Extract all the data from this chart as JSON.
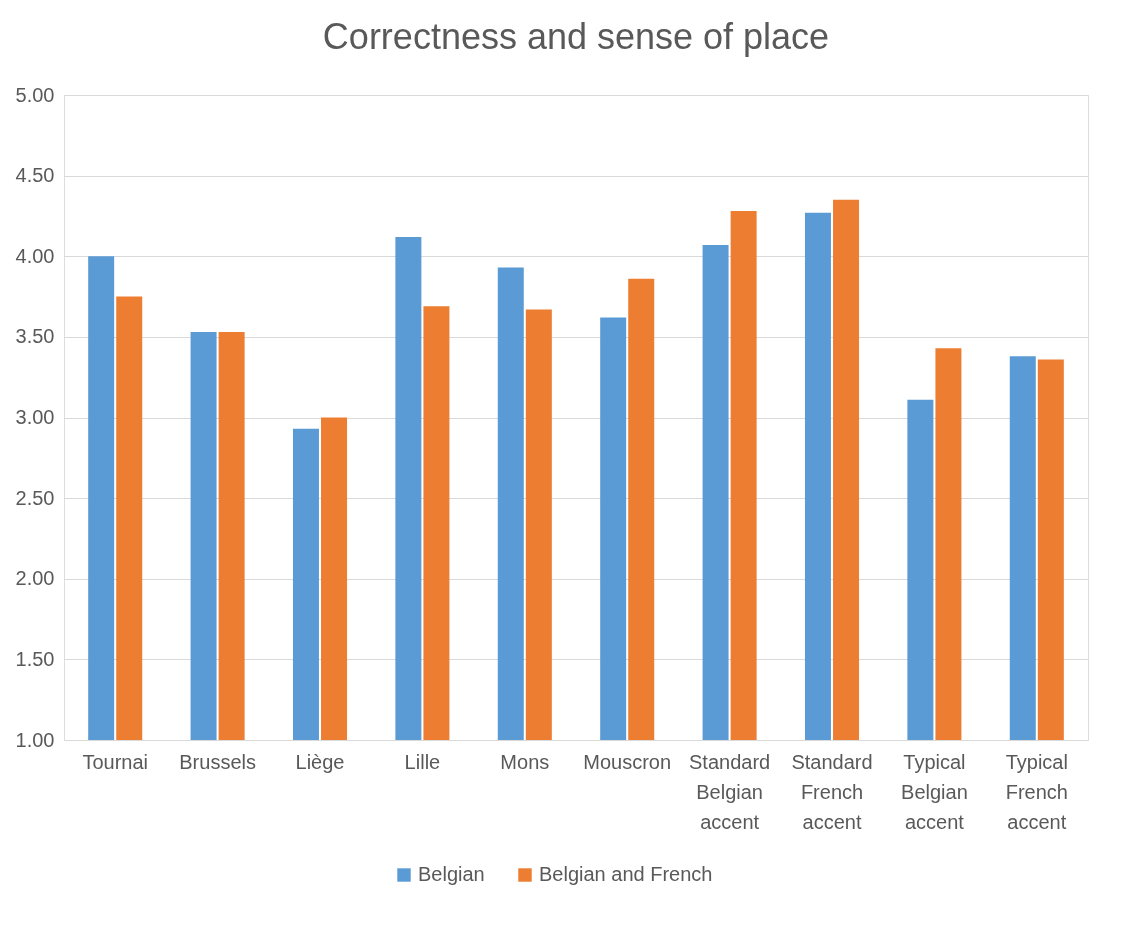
{
  "chart_data": {
    "type": "bar",
    "title": "Correctness and sense of place",
    "categories": [
      "Tournai",
      "Brussels",
      "Liège",
      "Lille",
      "Mons",
      "Mouscron",
      "Standard Belgian accent",
      "Standard French accent",
      "Typical Belgian accent",
      "Typical French accent"
    ],
    "series": [
      {
        "name": "Belgian",
        "color": "#5b9bd5",
        "values": [
          4.0,
          3.53,
          2.93,
          4.12,
          3.93,
          3.62,
          4.07,
          4.27,
          3.11,
          3.38
        ]
      },
      {
        "name": "Belgian and French",
        "color": "#ed7d31",
        "values": [
          3.75,
          3.53,
          3.0,
          3.69,
          3.67,
          3.86,
          4.28,
          4.35,
          3.43,
          3.36
        ]
      }
    ],
    "ylim": [
      1.0,
      5.0
    ],
    "yticks": [
      {
        "value": 1.0,
        "label": "1.00"
      },
      {
        "value": 1.5,
        "label": "1.50"
      },
      {
        "value": 2.0,
        "label": "2.00"
      },
      {
        "value": 2.5,
        "label": "2.50"
      },
      {
        "value": 3.0,
        "label": "3.00"
      },
      {
        "value": 3.5,
        "label": "3.50"
      },
      {
        "value": 4.0,
        "label": "4.00"
      },
      {
        "value": 4.5,
        "label": "4.50"
      },
      {
        "value": 5.0,
        "label": "5.00"
      }
    ],
    "grid": "y",
    "legend": "bottom"
  }
}
